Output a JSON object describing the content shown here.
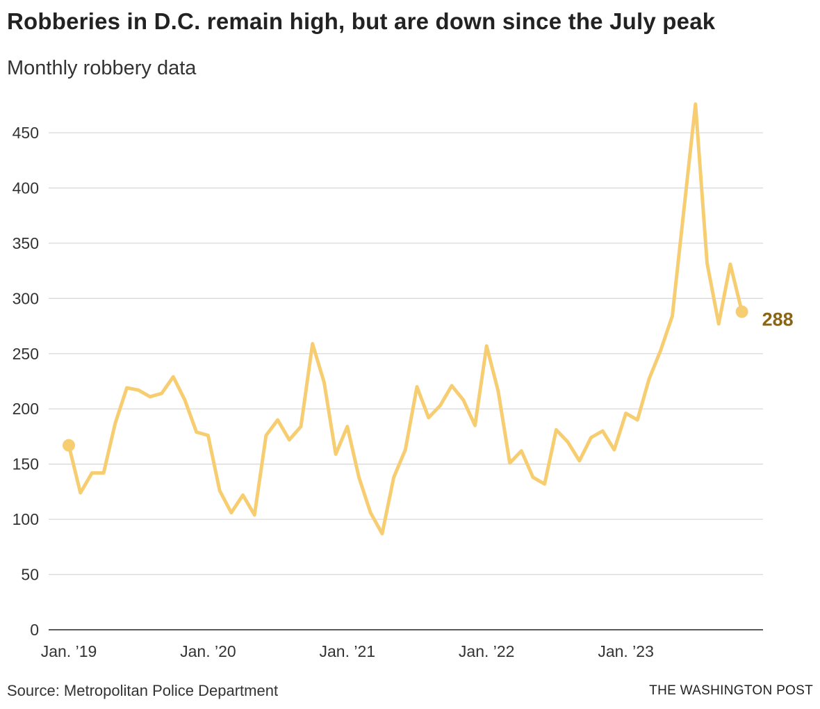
{
  "header": {
    "title": "Robberies in D.C. remain high, but are down since the July peak",
    "subtitle": "Monthly robbery data"
  },
  "footer": {
    "source": "Source: Metropolitan Police Department",
    "credit": "THE WASHINGTON POST"
  },
  "colors": {
    "line": "#f7cd72",
    "end_label": "#8a6514",
    "grid": "#d9d9d9",
    "axis": "#222222"
  },
  "chart_data": {
    "type": "line",
    "title": "Robberies in D.C. remain high, but are down since the July peak",
    "subtitle": "Monthly robbery data",
    "xlabel": "",
    "ylabel": "",
    "ylim": [
      0,
      475
    ],
    "yticks": [
      0,
      50,
      100,
      150,
      200,
      250,
      300,
      350,
      400,
      450
    ],
    "grid": true,
    "x_ticks": [
      {
        "index": 0,
        "label": "Jan. ’19"
      },
      {
        "index": 12,
        "label": "Jan. ’20"
      },
      {
        "index": 24,
        "label": "Jan. ’21"
      },
      {
        "index": 36,
        "label": "Jan. ’22"
      },
      {
        "index": 48,
        "label": "Jan. ’23"
      }
    ],
    "x": [
      "2019-01",
      "2019-02",
      "2019-03",
      "2019-04",
      "2019-05",
      "2019-06",
      "2019-07",
      "2019-08",
      "2019-09",
      "2019-10",
      "2019-11",
      "2019-12",
      "2020-01",
      "2020-02",
      "2020-03",
      "2020-04",
      "2020-05",
      "2020-06",
      "2020-07",
      "2020-08",
      "2020-09",
      "2020-10",
      "2020-11",
      "2020-12",
      "2021-01",
      "2021-02",
      "2021-03",
      "2021-04",
      "2021-05",
      "2021-06",
      "2021-07",
      "2021-08",
      "2021-09",
      "2021-10",
      "2021-11",
      "2021-12",
      "2022-01",
      "2022-02",
      "2022-03",
      "2022-04",
      "2022-05",
      "2022-06",
      "2022-07",
      "2022-08",
      "2022-09",
      "2022-10",
      "2022-11",
      "2022-12",
      "2023-01",
      "2023-02",
      "2023-03",
      "2023-04",
      "2023-05",
      "2023-06",
      "2023-07",
      "2023-08",
      "2023-09",
      "2023-10",
      "2023-11"
    ],
    "series": [
      {
        "values": [
          167,
          124,
          142,
          142,
          187,
          219,
          217,
          211,
          214,
          229,
          208,
          179,
          176,
          126,
          106,
          122,
          104,
          176,
          190,
          172,
          184,
          259,
          224,
          159,
          184,
          138,
          106,
          87,
          138,
          163,
          220,
          192,
          203,
          221,
          208,
          185,
          257,
          216,
          151,
          162,
          138,
          132,
          181,
          170,
          153,
          174,
          180,
          163,
          196,
          190,
          227,
          253,
          284,
          380,
          476,
          332,
          277,
          331,
          288
        ]
      }
    ],
    "end_label": "288",
    "start_marker": true,
    "end_marker": true
  }
}
